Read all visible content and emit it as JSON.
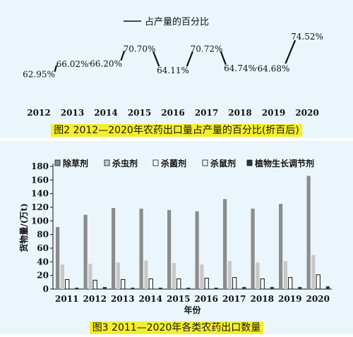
{
  "chart_data": [
    {
      "type": "line",
      "caption": "图2 2012—2020年农药出口量占产量的百分比(折百后)",
      "legend": "占产量的百分比",
      "categories": [
        "2012",
        "2013",
        "2014",
        "2015",
        "2016",
        "2017",
        "2018",
        "2019",
        "2020"
      ],
      "series": [
        {
          "name": "占产量的百分比",
          "values": [
            62.95,
            66.02,
            66.2,
            70.7,
            64.11,
            70.72,
            64.74,
            64.68,
            74.52
          ]
        }
      ],
      "value_labels": [
        "62.95%",
        "66.02%",
        "66.20%",
        "70.70%",
        "64.11%",
        "70.72%",
        "64.74%",
        "64.68%",
        "74.52%"
      ],
      "ylim": [
        60,
        76
      ]
    },
    {
      "type": "bar",
      "caption": "图3 2011—2020年各类农药出口数量",
      "xlabel": "年份",
      "ylabel": "货物量/(万t)",
      "ylim": [
        0,
        180
      ],
      "yticks": [
        0,
        20,
        40,
        60,
        80,
        100,
        120,
        140,
        160,
        180
      ],
      "legend_position": "top",
      "categories": [
        "2011",
        "2012",
        "2013",
        "2014",
        "2015",
        "2016",
        "2017",
        "2018",
        "2019",
        "2020"
      ],
      "series": [
        {
          "name": "除草剂",
          "color": "#8c8c8c",
          "values": [
            91,
            109,
            119,
            118,
            116,
            114,
            132,
            118,
            125,
            166
          ]
        },
        {
          "name": "杀虫剂",
          "color": "#c8c8c8",
          "values": [
            36,
            37,
            39,
            42,
            38,
            36,
            41,
            39,
            41,
            50
          ]
        },
        {
          "name": "杀菌剂",
          "color": "#ffffff",
          "values": [
            14,
            13,
            14,
            15,
            15,
            16,
            17,
            15,
            17,
            21
          ]
        },
        {
          "name": "杀鼠剂",
          "color": "#f0f0f0",
          "values": [
            0,
            0,
            0,
            0,
            0,
            0,
            0,
            0,
            0,
            0
          ]
        },
        {
          "name": "植物生长调节剂",
          "color": "#333333",
          "values": [
            2,
            3,
            2,
            2,
            2,
            2,
            3,
            3,
            3,
            4
          ]
        }
      ]
    }
  ]
}
